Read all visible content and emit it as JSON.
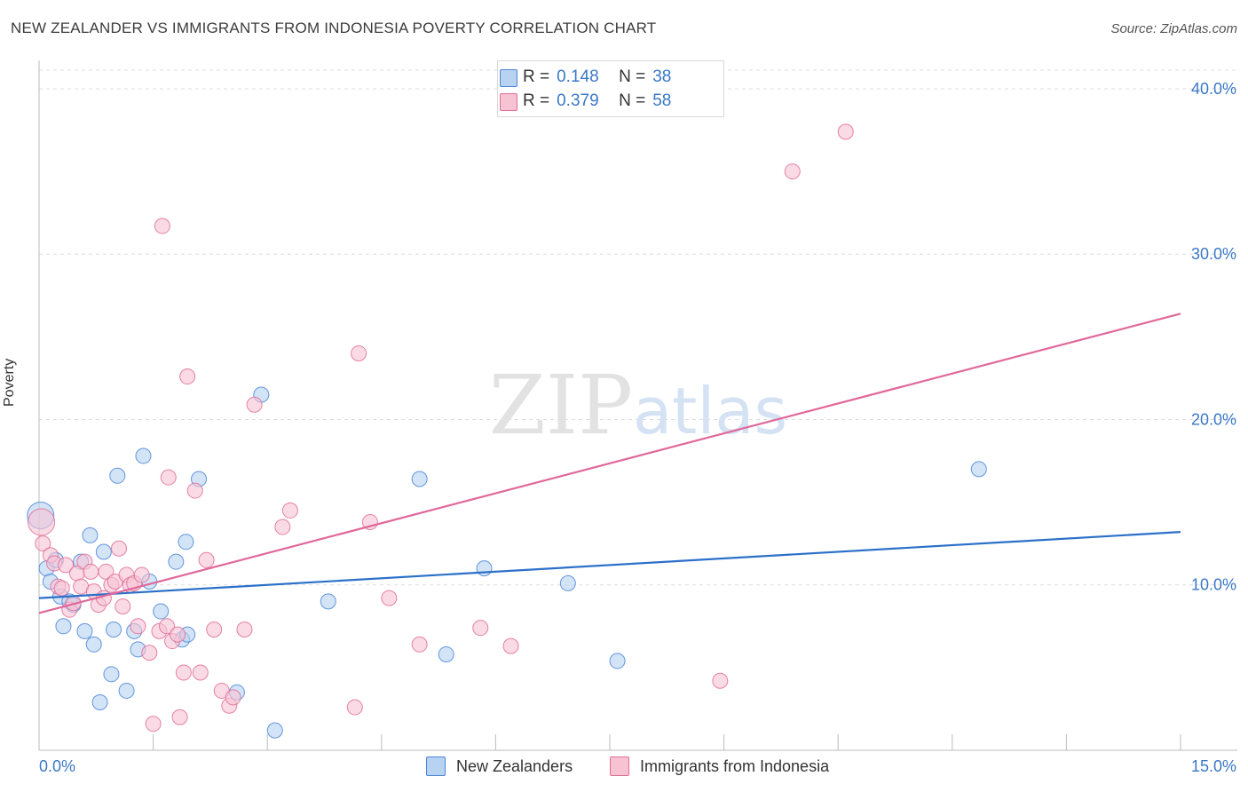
{
  "title": "NEW ZEALANDER VS IMMIGRANTS FROM INDONESIA POVERTY CORRELATION CHART",
  "source": "Source: ZipAtlas.com",
  "watermark": {
    "zip": "ZIP",
    "atlas": "atlas"
  },
  "colors": {
    "blue": "#4a86d8",
    "blue_fill": "#b8d2f2",
    "blue_line": "#2b70c9",
    "pink": "#e06d96",
    "pink_fill": "#f7c3d3",
    "pink_line": "#e0689a",
    "axis_text": "#3a78c6",
    "grid": "#dddddd"
  },
  "legend": {
    "r_label": "R =",
    "n_label": "N =",
    "series": [
      {
        "name": "New Zealanders",
        "r": "0.148",
        "n": "38"
      },
      {
        "name": "Immigrants from Indonesia",
        "r": "0.379",
        "n": "58"
      }
    ]
  },
  "chart_data": {
    "type": "scatter",
    "title": "NEW ZEALANDER VS IMMIGRANTS FROM INDONESIA POVERTY CORRELATION CHART",
    "xlabel": "",
    "ylabel": "Poverty",
    "xlim": [
      0,
      15
    ],
    "ylim": [
      0,
      41.5
    ],
    "x_tick_labels": [
      "0.0%",
      "15.0%"
    ],
    "y_ticks": [
      10,
      20,
      30,
      40
    ],
    "y_tick_labels": [
      "10.0%",
      "20.0%",
      "30.0%",
      "40.0%"
    ],
    "grid": true,
    "legend_position": "top-center",
    "series": [
      {
        "name": "New Zealanders",
        "trend": {
          "x": [
            0,
            15
          ],
          "y": [
            9.2,
            13.2
          ]
        },
        "points": [
          [
            0.02,
            14.2
          ],
          [
            0.1,
            11.0
          ],
          [
            0.15,
            10.2
          ],
          [
            0.22,
            11.5
          ],
          [
            0.28,
            9.3
          ],
          [
            0.32,
            7.5
          ],
          [
            0.4,
            9.0
          ],
          [
            0.45,
            8.8
          ],
          [
            0.55,
            11.4
          ],
          [
            0.6,
            7.2
          ],
          [
            0.67,
            13.0
          ],
          [
            0.72,
            6.4
          ],
          [
            0.8,
            2.9
          ],
          [
            0.85,
            12.0
          ],
          [
            0.95,
            4.6
          ],
          [
            0.98,
            7.3
          ],
          [
            1.03,
            16.6
          ],
          [
            1.15,
            3.6
          ],
          [
            1.25,
            7.2
          ],
          [
            1.3,
            6.1
          ],
          [
            1.37,
            17.8
          ],
          [
            1.45,
            10.2
          ],
          [
            1.6,
            8.4
          ],
          [
            1.8,
            11.4
          ],
          [
            1.88,
            6.7
          ],
          [
            1.93,
            12.6
          ],
          [
            1.95,
            7.0
          ],
          [
            2.1,
            16.4
          ],
          [
            2.6,
            3.5
          ],
          [
            2.92,
            21.5
          ],
          [
            3.1,
            1.2
          ],
          [
            3.8,
            9.0
          ],
          [
            5.0,
            16.4
          ],
          [
            5.35,
            5.8
          ],
          [
            5.85,
            11.0
          ],
          [
            6.95,
            10.1
          ],
          [
            7.6,
            5.4
          ],
          [
            12.35,
            17.0
          ]
        ]
      },
      {
        "name": "Immigrants from Indonesia",
        "trend": {
          "x": [
            0,
            15
          ],
          "y": [
            8.3,
            26.4
          ]
        },
        "points": [
          [
            0.03,
            13.8
          ],
          [
            0.05,
            12.5
          ],
          [
            0.15,
            11.8
          ],
          [
            0.2,
            11.3
          ],
          [
            0.25,
            9.9
          ],
          [
            0.3,
            9.8
          ],
          [
            0.35,
            11.2
          ],
          [
            0.4,
            8.5
          ],
          [
            0.45,
            8.9
          ],
          [
            0.5,
            10.7
          ],
          [
            0.55,
            9.9
          ],
          [
            0.6,
            11.4
          ],
          [
            0.68,
            10.8
          ],
          [
            0.72,
            9.6
          ],
          [
            0.78,
            8.8
          ],
          [
            0.85,
            9.2
          ],
          [
            0.88,
            10.8
          ],
          [
            0.95,
            10.0
          ],
          [
            1.0,
            10.2
          ],
          [
            1.05,
            12.2
          ],
          [
            1.1,
            8.7
          ],
          [
            1.15,
            10.6
          ],
          [
            1.2,
            10.0
          ],
          [
            1.25,
            10.1
          ],
          [
            1.3,
            7.5
          ],
          [
            1.35,
            10.6
          ],
          [
            1.45,
            5.9
          ],
          [
            1.5,
            1.6
          ],
          [
            1.58,
            7.2
          ],
          [
            1.62,
            31.7
          ],
          [
            1.68,
            7.5
          ],
          [
            1.7,
            16.5
          ],
          [
            1.75,
            6.6
          ],
          [
            1.82,
            7.0
          ],
          [
            1.85,
            2.0
          ],
          [
            1.9,
            4.7
          ],
          [
            1.95,
            22.6
          ],
          [
            2.05,
            15.7
          ],
          [
            2.12,
            4.7
          ],
          [
            2.2,
            11.5
          ],
          [
            2.3,
            7.3
          ],
          [
            2.4,
            3.6
          ],
          [
            2.5,
            2.7
          ],
          [
            2.55,
            3.2
          ],
          [
            2.7,
            7.3
          ],
          [
            2.83,
            20.9
          ],
          [
            3.2,
            13.5
          ],
          [
            3.3,
            14.5
          ],
          [
            4.15,
            2.6
          ],
          [
            4.2,
            24.0
          ],
          [
            4.35,
            13.8
          ],
          [
            4.6,
            9.2
          ],
          [
            5.0,
            6.4
          ],
          [
            5.8,
            7.4
          ],
          [
            6.2,
            6.3
          ],
          [
            8.95,
            4.2
          ],
          [
            9.9,
            35.0
          ],
          [
            10.6,
            37.4
          ]
        ]
      }
    ]
  }
}
